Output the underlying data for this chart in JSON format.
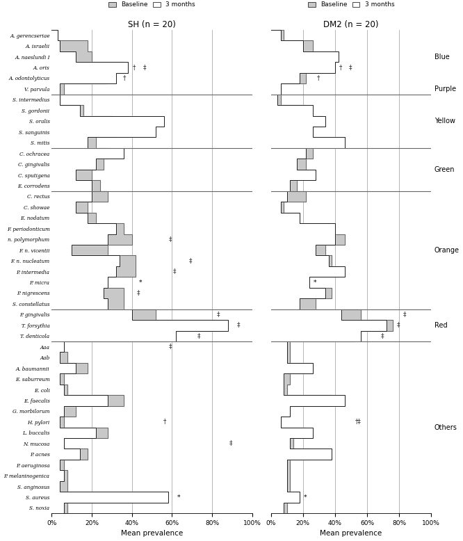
{
  "species": [
    "A. gerencseriae",
    "A. israelii",
    "A. naeslundi I",
    "A. oris",
    "A. odontolyticus",
    "V. parvula",
    "S. intermedius",
    "S. gordonii",
    "S. oralis",
    "S. sanguinis",
    "S. mitis",
    "C. ochracea",
    "C. gingivalis",
    "C. sputigena",
    "E. corrodens",
    "C. rectus",
    "C. showae",
    "E. nodatum",
    "F. periodonticum",
    "n. polymorphum",
    "F. n. vicentii",
    "F. n. nucleatum",
    "P. intermedia",
    "P. micra",
    "P. nigrescens",
    "S. constellatus",
    "P. gingivalis",
    "T. forsythia",
    "T. denticola",
    "Aaa",
    "Aab",
    "A. baumannii",
    "E. saburreum",
    "E. coli",
    "E. faecalis",
    "G. morbilorum",
    "H. pylori",
    "L. buccalis",
    "N. mucosa",
    "P. acnes",
    "P. aeruginosa",
    "P. melaninogenica",
    "S. anginosus",
    "S. aureus",
    "S. noxia"
  ],
  "separators_after": [
    5,
    10,
    14,
    25,
    28
  ],
  "color_groups": [
    {
      "label": "Blue",
      "start": 0,
      "end": 4
    },
    {
      "label": "Purple",
      "start": 5,
      "end": 5
    },
    {
      "label": "Yellow",
      "start": 6,
      "end": 10
    },
    {
      "label": "Green",
      "start": 11,
      "end": 14
    },
    {
      "label": "Orange",
      "start": 15,
      "end": 25
    },
    {
      "label": "Red",
      "start": 26,
      "end": 28
    },
    {
      "label": "Others",
      "start": 29,
      "end": 44
    }
  ],
  "sh_baseline": [
    3,
    18,
    20,
    36,
    28,
    6,
    4,
    16,
    30,
    32,
    22,
    28,
    26,
    20,
    24,
    28,
    18,
    22,
    36,
    40,
    28,
    42,
    42,
    18,
    36,
    36,
    52,
    82,
    58,
    6,
    8,
    18,
    6,
    8,
    36,
    12,
    6,
    28,
    6,
    18,
    6,
    8,
    8,
    8,
    8
  ],
  "sh_3months": [
    3,
    4,
    12,
    38,
    32,
    4,
    4,
    14,
    56,
    52,
    18,
    36,
    22,
    12,
    20,
    20,
    12,
    18,
    32,
    28,
    10,
    34,
    32,
    28,
    26,
    28,
    40,
    88,
    62,
    6,
    4,
    12,
    4,
    6,
    28,
    6,
    4,
    22,
    6,
    14,
    4,
    6,
    4,
    58,
    6
  ],
  "dm2_baseline": [
    8,
    26,
    22,
    36,
    22,
    4,
    6,
    22,
    32,
    26,
    18,
    26,
    22,
    18,
    16,
    22,
    8,
    18,
    36,
    46,
    34,
    38,
    42,
    18,
    38,
    28,
    56,
    76,
    52,
    12,
    12,
    26,
    12,
    10,
    38,
    12,
    6,
    22,
    14,
    24,
    12,
    12,
    12,
    10,
    10
  ],
  "dm2_3months": [
    6,
    20,
    42,
    40,
    18,
    6,
    4,
    26,
    34,
    26,
    46,
    22,
    16,
    28,
    12,
    10,
    6,
    18,
    40,
    40,
    28,
    36,
    46,
    24,
    34,
    18,
    44,
    72,
    56,
    10,
    10,
    26,
    8,
    8,
    46,
    12,
    6,
    26,
    12,
    38,
    10,
    10,
    10,
    18,
    8
  ],
  "sh_annotations": [
    {
      "idx": 3,
      "symbol": "†",
      "x": 40
    },
    {
      "idx": 3,
      "symbol": "‡",
      "x": 45
    },
    {
      "idx": 4,
      "symbol": "†",
      "x": 35
    },
    {
      "idx": 19,
      "symbol": "‡",
      "x": 58
    },
    {
      "idx": 21,
      "symbol": "‡",
      "x": 68
    },
    {
      "idx": 22,
      "symbol": "‡",
      "x": 60
    },
    {
      "idx": 23,
      "symbol": "*",
      "x": 43
    },
    {
      "idx": 24,
      "symbol": "‡",
      "x": 42
    },
    {
      "idx": 26,
      "symbol": "‡",
      "x": 82
    },
    {
      "idx": 27,
      "symbol": "‡",
      "x": 92
    },
    {
      "idx": 28,
      "symbol": "‡",
      "x": 72
    },
    {
      "idx": 29,
      "symbol": "‡",
      "x": 58
    },
    {
      "idx": 36,
      "symbol": "†",
      "x": 55
    },
    {
      "idx": 38,
      "symbol": "‡",
      "x": 88
    },
    {
      "idx": 43,
      "symbol": "*",
      "x": 62
    }
  ],
  "dm2_annotations": [
    {
      "idx": 3,
      "symbol": "†",
      "x": 42
    },
    {
      "idx": 3,
      "symbol": "‡",
      "x": 48
    },
    {
      "idx": 4,
      "symbol": "†",
      "x": 28
    },
    {
      "idx": 23,
      "symbol": "*",
      "x": 26
    },
    {
      "idx": 26,
      "symbol": "‡",
      "x": 82
    },
    {
      "idx": 27,
      "symbol": "‡",
      "x": 78
    },
    {
      "idx": 28,
      "symbol": "‡",
      "x": 68
    },
    {
      "idx": 36,
      "symbol": "†‡",
      "x": 52
    },
    {
      "idx": 43,
      "symbol": "*",
      "x": 20
    }
  ],
  "sh_title": "SH (n = 20)",
  "dm2_title": "DM2 (n = 20)",
  "xlabel": "Mean prevalence",
  "baseline_color": "#c8c8c8",
  "line_color": "#1a1a1a",
  "grid_color": "#aaaaaa",
  "sep_color": "#666666",
  "background_color": "#ffffff"
}
